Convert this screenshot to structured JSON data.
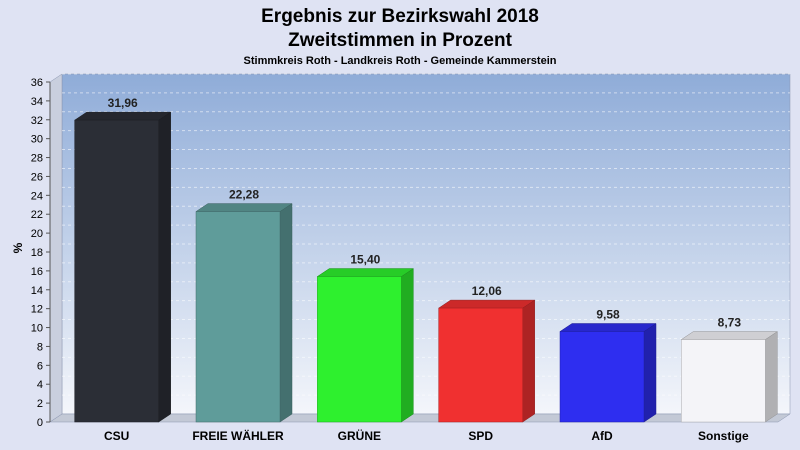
{
  "chart_data": {
    "type": "bar",
    "title": "Ergebnis zur Bezirkswahl 2018",
    "title2": "Zweitstimmen in Prozent",
    "subtitle": "Stimmkreis Roth - Landkreis Roth - Gemeinde Kammerstein",
    "ylabel": "%",
    "xlabel": "",
    "ylim": [
      0,
      36
    ],
    "yticks": [
      "0",
      "2",
      "4",
      "6",
      "8",
      "10",
      "12",
      "14",
      "16",
      "18",
      "20",
      "22",
      "24",
      "26",
      "28",
      "30",
      "32",
      "34",
      "36"
    ],
    "grid": true,
    "categories": [
      "CSU",
      "FREIE WÄHLER",
      "GRÜNE",
      "SPD",
      "AfD",
      "Sonstige"
    ],
    "values": [
      31.96,
      22.28,
      15.4,
      12.06,
      9.58,
      8.73
    ],
    "value_labels": [
      "31,96",
      "22,28",
      "15,40",
      "12,06",
      "9,58",
      "8,73"
    ],
    "colors": [
      "#2b2e36",
      "#5f9c9a",
      "#2ef02e",
      "#f03030",
      "#2e2ef0",
      "#f4f4f8"
    ]
  }
}
